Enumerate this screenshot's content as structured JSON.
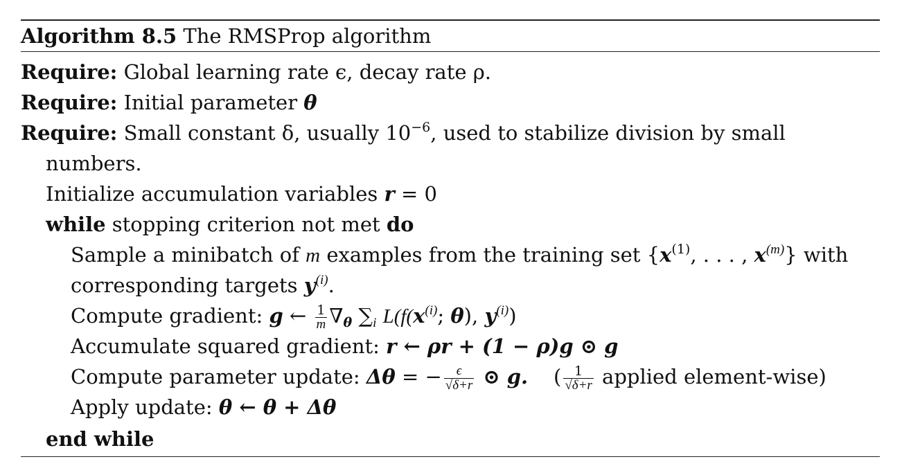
{
  "caption": {
    "label": "Algorithm 8.5",
    "title": "The RMSProp algorithm"
  },
  "lines": {
    "require_kw": "Require:",
    "req1_text": "Global learning rate ϵ, decay rate ρ.",
    "req2_text": "Initial parameter",
    "req2_sym": "θ",
    "req3_text_a": "Small constant δ, usually 10",
    "req3_exp": "−6",
    "req3_text_b": ", used to stabilize division by small",
    "req3_cont": "numbers.",
    "init_text": "Initialize accumulation variables",
    "init_math": "r",
    "init_eq": " = 0",
    "while_kw": "while",
    "while_text": "stopping criterion not met",
    "do_kw": "do",
    "sample_text_a": "Sample a minibatch of",
    "sample_m": "m",
    "sample_text_b": "examples from the training set {",
    "sample_set_x1": "x",
    "sample_set_sup1": "(1)",
    "sample_set_mid": ", . . . , ",
    "sample_set_x2": "x",
    "sample_set_sup2": "(m)",
    "sample_text_c": "} with",
    "sample_cont_text": "corresponding targets",
    "sample_cont_y": "y",
    "sample_cont_sup": "(i)",
    "grad_text": "Compute gradient:",
    "grad_g": "g",
    "grad_arrow": " ← ",
    "grad_frac_num": "1",
    "grad_frac_den": "m",
    "grad_nabla": "∇",
    "grad_theta_sub": "θ",
    "grad_sum": "∑",
    "grad_sum_sub": "i",
    "grad_rest_a": "L(f(",
    "grad_x": "x",
    "grad_x_sup": "(i)",
    "grad_semi": "; ",
    "grad_theta": "θ",
    "grad_comma": "), ",
    "grad_y": "y",
    "grad_y_sup": "(i)",
    "grad_close": ")",
    "acc_text": "Accumulate squared gradient:",
    "acc_math": "r ← ρr + (1 − ρ)g ⊙ g",
    "upd_text": "Compute parameter update:",
    "upd_lhs": "Δθ",
    "upd_eq": " = −",
    "upd_frac_num": "ϵ",
    "upd_frac_den": "√δ+r",
    "upd_tail": " ⊙ g.",
    "upd_note_open": "(",
    "upd_note_num": "1",
    "upd_note_den": "√δ+r",
    "upd_note_text": " applied element-wise)",
    "apply_text": "Apply update:",
    "apply_math": "θ ← θ + Δθ",
    "end_kw": "end while"
  }
}
